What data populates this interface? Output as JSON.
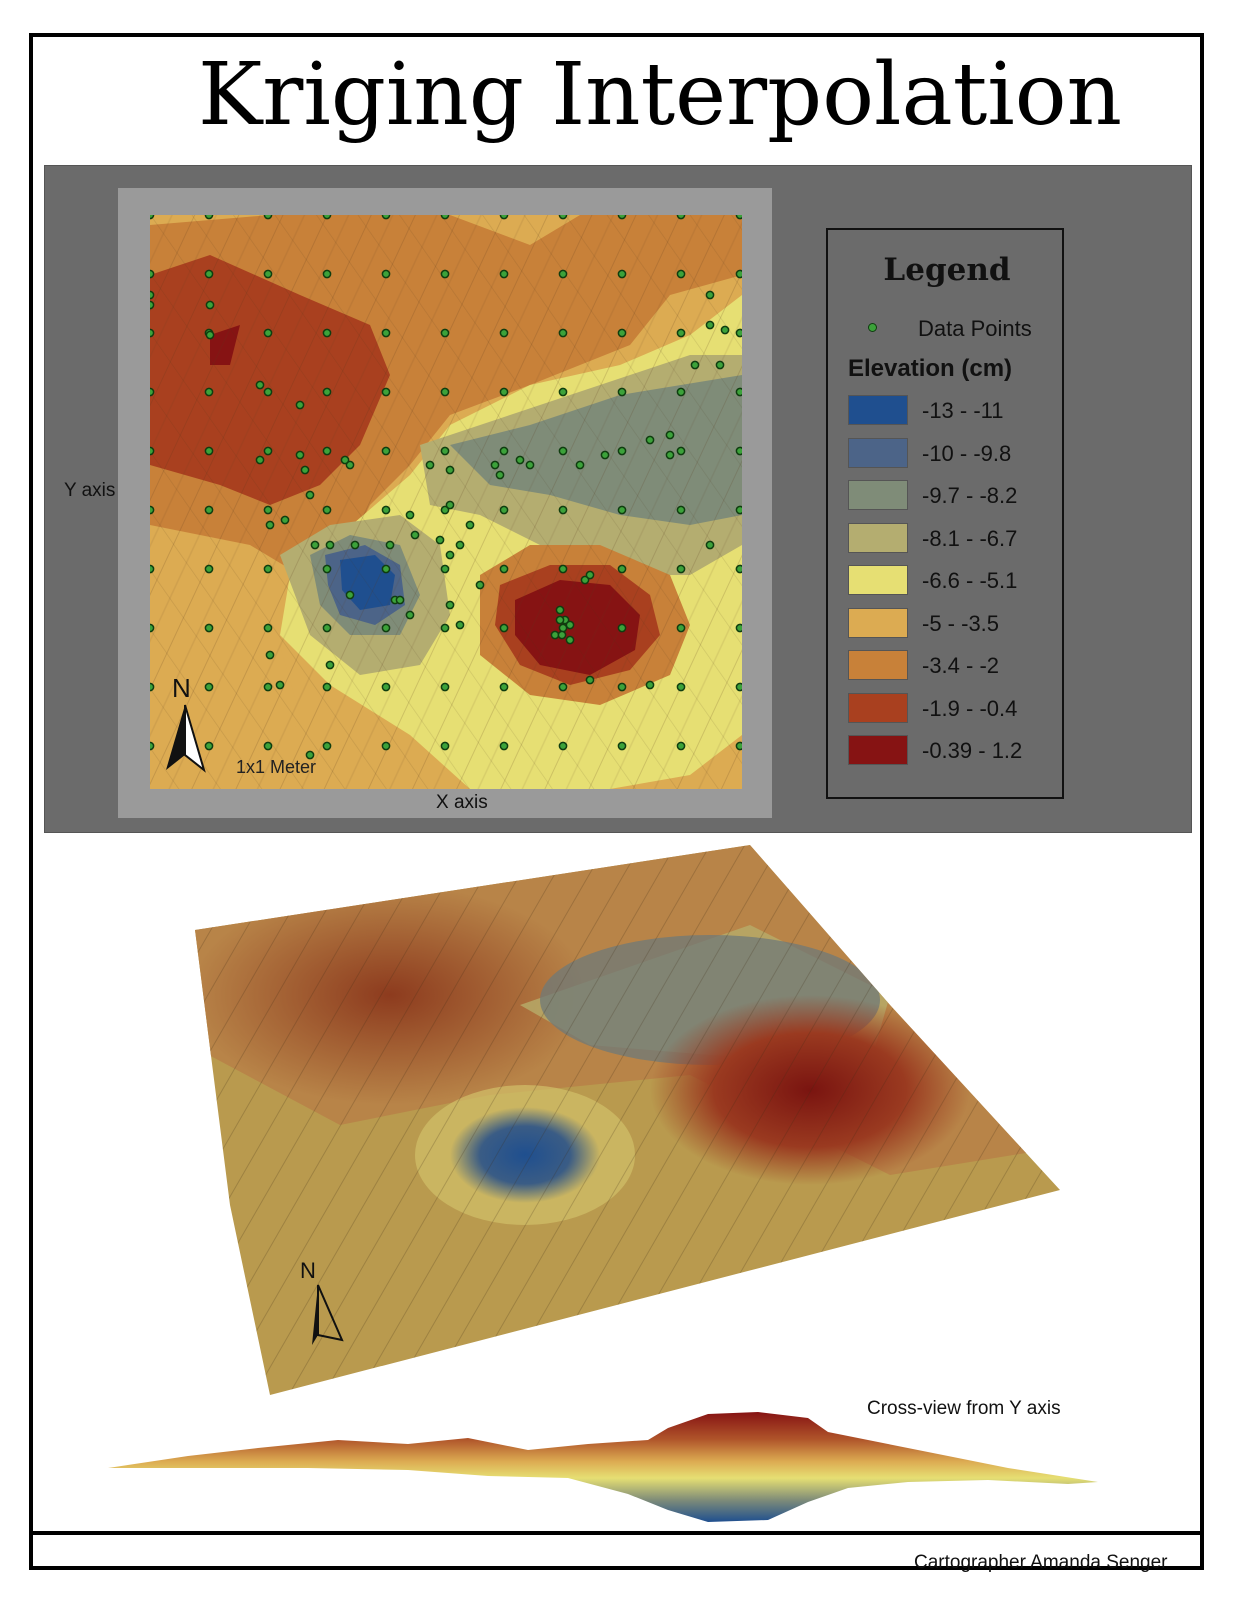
{
  "title": "Kriging Interpolation",
  "map": {
    "y_axis_label": "Y axis",
    "x_axis_label": "X axis",
    "scale_label": "1x1 Meter",
    "north_label": "N"
  },
  "legend": {
    "title": "Legend",
    "points_label": "Data Points",
    "elevation_title": "Elevation (cm)",
    "classes": [
      {
        "label": "-13 - -11",
        "color": "#1f4f8f"
      },
      {
        "label": "-10 - -9.8",
        "color": "#4c6488"
      },
      {
        "label": "-9.7 - -8.2",
        "color": "#7f8c78"
      },
      {
        "label": "-8.1 - -6.7",
        "color": "#b4ad70"
      },
      {
        "label": "-6.6 - -5.1",
        "color": "#e6df73"
      },
      {
        "label": "-5 - -3.5",
        "color": "#dcab52"
      },
      {
        "label": "-3.4 - -2",
        "color": "#c88139"
      },
      {
        "label": "-1.9 - -0.4",
        "color": "#a9401f"
      },
      {
        "label": "-0.39 - 1.2",
        "color": "#861313"
      }
    ]
  },
  "view3d": {
    "north_label": "N"
  },
  "cross_section": {
    "label": "Cross-view from Y axis"
  },
  "credit": "Cartographer Amanda Senger"
}
